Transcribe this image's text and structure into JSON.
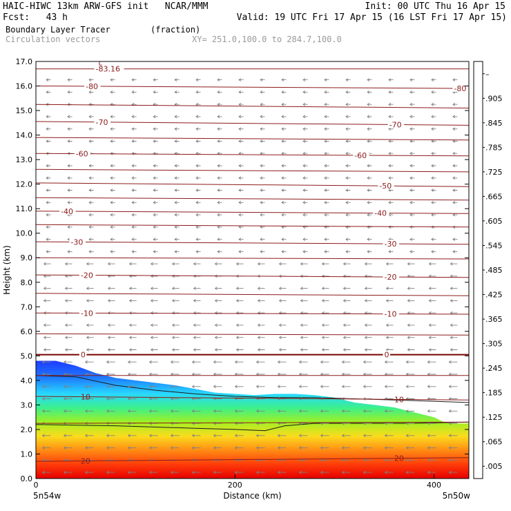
{
  "header": {
    "line1_left": "HAIC-HIWC 13km ARW-GFS init   NCAR/MMM",
    "line1_right": "Init: 00 UTC Thu 16 Apr 15",
    "line2_left": "Fcst:   43 h",
    "line2_right": "Valid: 19 UTC Fri 17 Apr 15 (16 LST Fri 17 Apr 15)",
    "line3_left": "Boundary Layer Tracer",
    "line3_units": "(fraction)",
    "line4_left": "Circulation vectors",
    "line4_xy": "XY= 251.0,100.0 to 284.7,100.0"
  },
  "chart_data": {
    "type": "heatmap",
    "title": "Boundary Layer Tracer",
    "xlabel": "Distance (km)",
    "ylabel": "Height (km)",
    "xlim": [
      0,
      435
    ],
    "ylim": [
      0,
      17
    ],
    "x_ticks": [
      0,
      200,
      400
    ],
    "x_tick_labels": [
      "0",
      "200",
      "400"
    ],
    "y_ticks": [
      0,
      1,
      2,
      3,
      4,
      5,
      6,
      7,
      8,
      9,
      10,
      11,
      12,
      13,
      14,
      15,
      16,
      17
    ],
    "y_tick_labels": [
      "0.0",
      "1.0",
      "2.0",
      "3.0",
      "4.0",
      "5.0",
      "6.0",
      "7.0",
      "8.0",
      "9.0",
      "10.0",
      "11.0",
      "12.0",
      "13.0",
      "14.0",
      "15.0",
      "16.0",
      "17.0"
    ],
    "x_endpoint_labels": {
      "left": "5n54w",
      "right": "5n50w"
    },
    "colorbar": {
      "labels": [
        ".005",
        ".065",
        ".125",
        ".185",
        ".245",
        ".305",
        ".365",
        ".425",
        ".485",
        ".545",
        ".605",
        ".665",
        ".725",
        ".785",
        ".845",
        ".905",
        "–"
      ],
      "colors": [
        "#ffffff",
        "#1e3cff",
        "#1e78ff",
        "#1eb4ff",
        "#28d8ff",
        "#33f0d2",
        "#3cf08c",
        "#50f032",
        "#a0f023",
        "#e6f025",
        "#fadc1e",
        "#ffb41e",
        "#ff8c14",
        "#ff6414",
        "#ff3c0a",
        "#f01e05",
        "#e60000"
      ]
    },
    "tracer_top_km": [
      [
        0,
        4.8
      ],
      [
        20,
        4.8
      ],
      [
        40,
        4.6
      ],
      [
        60,
        4.3
      ],
      [
        80,
        4.1
      ],
      [
        100,
        4.0
      ],
      [
        120,
        3.9
      ],
      [
        140,
        3.8
      ],
      [
        160,
        3.65
      ],
      [
        180,
        3.5
      ],
      [
        200,
        3.45
      ],
      [
        220,
        3.4
      ],
      [
        240,
        3.45
      ],
      [
        260,
        3.45
      ],
      [
        280,
        3.4
      ],
      [
        300,
        3.3
      ],
      [
        320,
        3.1
      ],
      [
        340,
        3.0
      ],
      [
        360,
        2.9
      ],
      [
        380,
        2.7
      ],
      [
        400,
        2.5
      ],
      [
        410,
        2.3
      ],
      [
        420,
        2.25
      ],
      [
        435,
        2.25
      ]
    ],
    "boundary_line_km": [
      [
        0,
        4.2
      ],
      [
        40,
        4.15
      ],
      [
        80,
        3.8
      ],
      [
        120,
        3.6
      ],
      [
        160,
        3.45
      ],
      [
        200,
        3.35
      ],
      [
        240,
        3.3
      ],
      [
        280,
        3.3
      ],
      [
        320,
        3.25
      ],
      [
        360,
        3.2
      ],
      [
        400,
        3.15
      ],
      [
        435,
        3.1
      ]
    ],
    "inversion_line_km": [
      [
        0,
        2.2
      ],
      [
        80,
        2.15
      ],
      [
        160,
        2.05
      ],
      [
        200,
        2.0
      ],
      [
        230,
        1.95
      ],
      [
        250,
        2.15
      ],
      [
        280,
        2.25
      ],
      [
        320,
        2.25
      ],
      [
        380,
        2.25
      ],
      [
        435,
        2.3
      ]
    ],
    "temperature_contours": [
      {
        "label": "-83.16",
        "y": [
          16.7,
          16.7
        ],
        "label_x": 60
      },
      {
        "label": "-80",
        "y": [
          16.0,
          15.9
        ],
        "label_x": [
          50,
          420
        ]
      },
      {
        "label": "",
        "y": [
          15.25,
          15.1
        ]
      },
      {
        "label": "-70",
        "y": [
          14.55,
          14.4
        ],
        "label_x": [
          60,
          355
        ]
      },
      {
        "label": "",
        "y": [
          13.9,
          13.8
        ]
      },
      {
        "label": "-60",
        "y": [
          13.25,
          13.15
        ],
        "label_x": [
          40,
          320
        ]
      },
      {
        "label": "",
        "y": [
          12.6,
          12.5
        ]
      },
      {
        "label": "-50",
        "y": [
          12.05,
          11.9
        ],
        "label_x": 345
      },
      {
        "label": "",
        "y": [
          11.45,
          11.35
        ]
      },
      {
        "label": "-40",
        "y": [
          10.9,
          10.8
        ],
        "label_x": [
          25,
          340
        ]
      },
      {
        "label": "",
        "y": [
          10.35,
          10.25
        ]
      },
      {
        "label": "-30",
        "y": [
          9.65,
          9.55
        ],
        "label_x": [
          35,
          350
        ]
      },
      {
        "label": "",
        "y": [
          9.0,
          8.95
        ]
      },
      {
        "label": "-20",
        "y": [
          8.3,
          8.2
        ],
        "label_x": [
          45,
          350
        ]
      },
      {
        "label": "",
        "y": [
          7.55,
          7.45
        ]
      },
      {
        "label": "-10",
        "y": [
          6.75,
          6.7
        ],
        "label_x": [
          45,
          350
        ]
      },
      {
        "label": "",
        "y": [
          5.9,
          5.85
        ]
      },
      {
        "label": "0",
        "y": [
          5.05,
          5.05
        ],
        "label_x": [
          45,
          350
        ]
      },
      {
        "label": "",
        "y": [
          4.2,
          4.2
        ]
      },
      {
        "label": "10",
        "y": [
          3.35,
          3.2
        ],
        "label_x": [
          45,
          360
        ]
      },
      {
        "label": "",
        "y": [
          2.25,
          2.3
        ]
      },
      {
        "label": "20",
        "y": [
          0.7,
          0.85
        ],
        "label_x": [
          45,
          360
        ]
      }
    ]
  }
}
